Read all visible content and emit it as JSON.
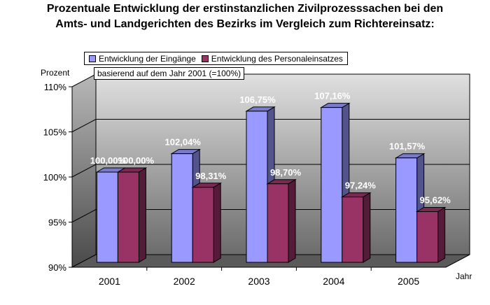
{
  "chart_data": {
    "type": "bar",
    "title": "Prozentuale Entwicklung der erstinstanzlichen Zivilprozesssachen bei den\nAmts- und Landgerichten des Bezirks im Vergleich zum Richtereinsatz:",
    "note": "basierend auf dem Jahr 2001 (=100%)",
    "ylabel": "Prozent",
    "xlabel": "Jahr",
    "categories": [
      "2001",
      "2002",
      "2003",
      "2004",
      "2005"
    ],
    "series": [
      {
        "name": "Entwicklung der Eingänge",
        "values": [
          100.0,
          102.04,
          106.75,
          107.16,
          101.57
        ],
        "labels": [
          "100,00%",
          "102,04%",
          "106,75%",
          "107,16%",
          "101,57%"
        ],
        "color": "#9999ff"
      },
      {
        "name": "Entwicklung des Personaleinsatzes",
        "values": [
          100.0,
          98.31,
          98.7,
          97.24,
          95.62
        ],
        "labels": [
          "100,00%",
          "98,31%",
          "98,70%",
          "97,24%",
          "95,62%"
        ],
        "color": "#993366"
      }
    ],
    "ylim": [
      90,
      110
    ],
    "yticks": [
      90,
      95,
      100,
      105,
      110
    ],
    "ytick_labels": [
      "90%",
      "95%",
      "100%",
      "105%",
      "110%"
    ],
    "grid": true,
    "legend": "top"
  }
}
